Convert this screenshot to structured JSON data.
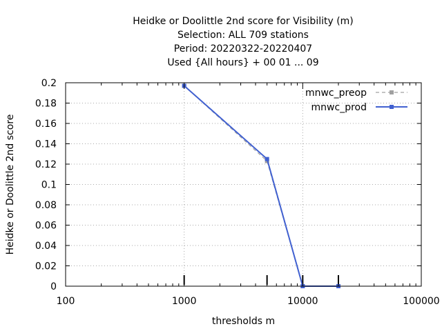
{
  "chart_data": {
    "type": "line",
    "title_lines": [
      "Heidke or Doolittle 2nd score  for Visibility (m)",
      "Selection: ALL    709 stations",
      "Period: 20220322-20220407",
      "Used {All hours} + 00 01 ... 09"
    ],
    "xlabel": "thresholds m",
    "ylabel": "Heidke or Doolittle 2nd score",
    "x_scale": "log",
    "xlim": [
      100,
      100000
    ],
    "ylim": [
      0,
      0.2
    ],
    "x_ticks": [
      100,
      1000,
      10000,
      100000
    ],
    "x_tick_labels": [
      "100",
      "1000",
      "10000",
      "100000"
    ],
    "y_ticks": [
      0,
      0.02,
      0.04,
      0.06,
      0.08,
      0.1,
      0.12,
      0.14,
      0.16,
      0.18,
      0.2
    ],
    "y_tick_labels": [
      "0",
      "0.02",
      "0.04",
      "0.06",
      "0.08",
      "0.1",
      "0.12",
      "0.14",
      "0.16",
      "0.18",
      "0.2"
    ],
    "grid": true,
    "legend_position": "top-right",
    "threshold_markers": [
      1000,
      5000,
      10000,
      20000
    ],
    "series": [
      {
        "name": "mnwc_preop",
        "color": "#a0a0a0",
        "style": "dashed",
        "x": [
          1000,
          5000,
          10000,
          20000
        ],
        "y": [
          0.197,
          0.123,
          0.0,
          0.0
        ]
      },
      {
        "name": "mnwc_prod",
        "color": "#4060d0",
        "style": "solid",
        "x": [
          1000,
          5000,
          10000,
          20000
        ],
        "y": [
          0.197,
          0.125,
          0.0,
          0.0
        ]
      }
    ]
  }
}
